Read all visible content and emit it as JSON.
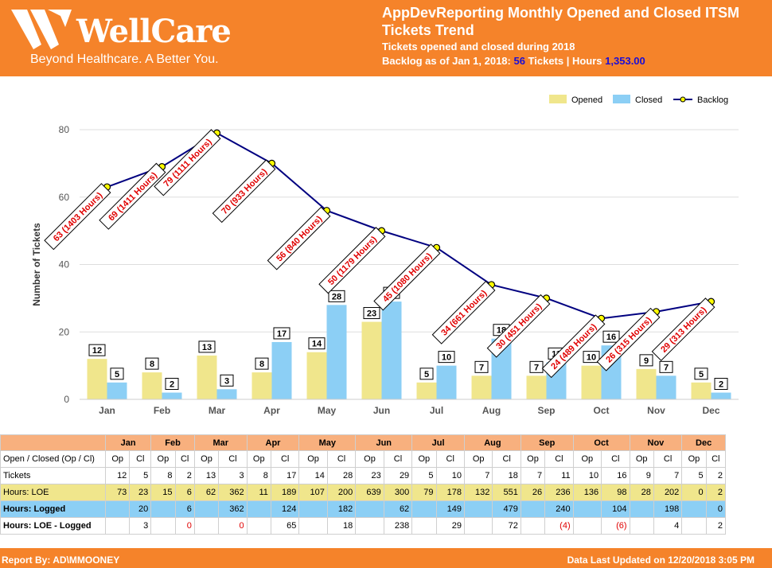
{
  "header": {
    "logo_text": "WellCare",
    "logo_tagline": "Beyond Healthcare. A Better You.",
    "title": "AppDevReporting Monthly Opened and Closed ITSM Tickets Trend",
    "subtitle": "Tickets opened and closed during 2018",
    "backlog_prefix": "Backlog as of Jan 1, 2018: ",
    "backlog_tickets": "56",
    "backlog_mid": " Tickets | Hours ",
    "backlog_hours": "1,353.00"
  },
  "chart_data": {
    "type": "bar",
    "categories": [
      "Jan",
      "Feb",
      "Mar",
      "Apr",
      "May",
      "Jun",
      "Jul",
      "Aug",
      "Sep",
      "Oct",
      "Nov",
      "Dec"
    ],
    "series": [
      {
        "name": "Opened",
        "type": "bar",
        "color": "#f0e68c",
        "values": [
          12,
          8,
          13,
          8,
          14,
          23,
          5,
          7,
          7,
          10,
          9,
          5
        ]
      },
      {
        "name": "Closed",
        "type": "bar",
        "color": "#8ccff5",
        "values": [
          5,
          2,
          3,
          17,
          28,
          29,
          10,
          18,
          11,
          16,
          7,
          2
        ]
      },
      {
        "name": "Backlog",
        "type": "line",
        "color": "#000080",
        "values": [
          63,
          69,
          79,
          70,
          56,
          50,
          45,
          34,
          30,
          24,
          26,
          29
        ],
        "labels": [
          "63 (1403 Hours)",
          "69 (1411 Hours)",
          "79 (1111 Hours)",
          "70 (933 Hours)",
          "56 (840 Hours)",
          "50 (1179 Hours)",
          "45 (1080 Hours)",
          "34 (661 Hours)",
          "30 (451 Hours)",
          "24 (489 Hours)",
          "26 (315 Hours)",
          "29 (313 Hours)"
        ]
      }
    ],
    "ylabel": "Number of Tickets",
    "xlabel": "",
    "ylim": [
      0,
      80
    ],
    "yticks": [
      0,
      20,
      40,
      60,
      80
    ],
    "legend": "top-right",
    "grid": true
  },
  "table": {
    "months": [
      "Jan",
      "Feb",
      "Mar",
      "Apr",
      "May",
      "Jun",
      "Jul",
      "Aug",
      "Sep",
      "Oct",
      "Nov",
      "Dec"
    ],
    "subheader_label": "Open / Closed (Op / Cl)",
    "op": "Op",
    "cl": "Cl",
    "rows": [
      {
        "label": "Tickets",
        "cells": [
          "12",
          "5",
          "8",
          "2",
          "13",
          "3",
          "8",
          "17",
          "14",
          "28",
          "23",
          "29",
          "5",
          "10",
          "7",
          "18",
          "7",
          "11",
          "10",
          "16",
          "9",
          "7",
          "5",
          "2"
        ]
      },
      {
        "label": "Hours: LOE",
        "cells": [
          "73",
          "23",
          "15",
          "6",
          "62",
          "362",
          "11",
          "189",
          "107",
          "200",
          "639",
          "300",
          "79",
          "178",
          "132",
          "551",
          "26",
          "236",
          "136",
          "98",
          "28",
          "202",
          "0",
          "2"
        ]
      },
      {
        "label": "Hours: Logged",
        "cells": [
          "20",
          "6",
          "362",
          "124",
          "182",
          "62",
          "149",
          "479",
          "240",
          "104",
          "198",
          "0"
        ]
      },
      {
        "label": "Hours: LOE - Logged",
        "cells": [
          "3",
          "0",
          "0",
          "65",
          "18",
          "238",
          "29",
          "72",
          "(4)",
          "(6)",
          "4",
          "2"
        ]
      }
    ]
  },
  "footer": {
    "report_by": "Report By: AD\\MMOONEY",
    "updated": "Data Last Updated on 12/20/2018 3:05 PM"
  }
}
